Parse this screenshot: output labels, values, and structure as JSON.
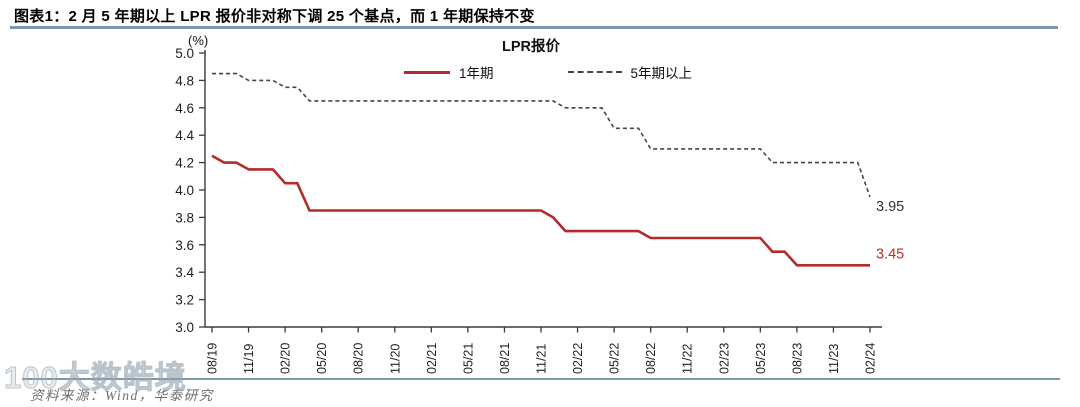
{
  "header": {
    "title": "图表1：2 月 5 年期以上 LPR 报价非对称下调 25 个基点，而 1 年期保持不变"
  },
  "chart_data": {
    "type": "line",
    "title": "LPR报价",
    "unit_label": "(%)",
    "ylim": [
      3.0,
      5.0
    ],
    "ytick_step": 0.2,
    "x_start": "2019-08",
    "x_end": "2024-02",
    "x_frequency": "monthly",
    "x_tick_every_n_points": 3,
    "x_tick_labels": [
      "08/19",
      "11/19",
      "02/20",
      "05/20",
      "08/20",
      "11/20",
      "02/21",
      "05/21",
      "08/21",
      "11/21",
      "02/22",
      "05/22",
      "08/22",
      "11/22",
      "02/23",
      "05/23",
      "08/23",
      "11/23",
      "02/24"
    ],
    "grid": false,
    "legend_position": "top",
    "series": [
      {
        "name": "1年期",
        "style": "solid",
        "color": "#B42B2B",
        "values": [
          4.25,
          4.2,
          4.2,
          4.15,
          4.15,
          4.15,
          4.05,
          4.05,
          3.85,
          3.85,
          3.85,
          3.85,
          3.85,
          3.85,
          3.85,
          3.85,
          3.85,
          3.85,
          3.85,
          3.85,
          3.85,
          3.85,
          3.85,
          3.85,
          3.85,
          3.85,
          3.85,
          3.85,
          3.8,
          3.7,
          3.7,
          3.7,
          3.7,
          3.7,
          3.7,
          3.7,
          3.65,
          3.65,
          3.65,
          3.65,
          3.65,
          3.65,
          3.65,
          3.65,
          3.65,
          3.65,
          3.55,
          3.55,
          3.45,
          3.45,
          3.45,
          3.45,
          3.45,
          3.45,
          3.45
        ]
      },
      {
        "name": "5年期以上",
        "style": "dashed",
        "color": "#454545",
        "values": [
          4.85,
          4.85,
          4.85,
          4.8,
          4.8,
          4.8,
          4.75,
          4.75,
          4.65,
          4.65,
          4.65,
          4.65,
          4.65,
          4.65,
          4.65,
          4.65,
          4.65,
          4.65,
          4.65,
          4.65,
          4.65,
          4.65,
          4.65,
          4.65,
          4.65,
          4.65,
          4.65,
          4.65,
          4.65,
          4.6,
          4.6,
          4.6,
          4.6,
          4.45,
          4.45,
          4.45,
          4.3,
          4.3,
          4.3,
          4.3,
          4.3,
          4.3,
          4.3,
          4.3,
          4.3,
          4.3,
          4.2,
          4.2,
          4.2,
          4.2,
          4.2,
          4.2,
          4.2,
          4.2,
          3.95
        ]
      }
    ],
    "end_labels": [
      {
        "series": "5年期以上",
        "text": "3.95",
        "color": "#333333"
      },
      {
        "series": "1年期",
        "text": "3.45",
        "color": "#C22A27"
      }
    ]
  },
  "footer": {
    "source": "资料来源：Wind，华泰研究",
    "watermark": "100大数皓境"
  },
  "style_colors": {
    "rule_blue": "#7C99AB",
    "axis_gray": "#3A3A3A",
    "tick_text": "#1F1F1F"
  }
}
